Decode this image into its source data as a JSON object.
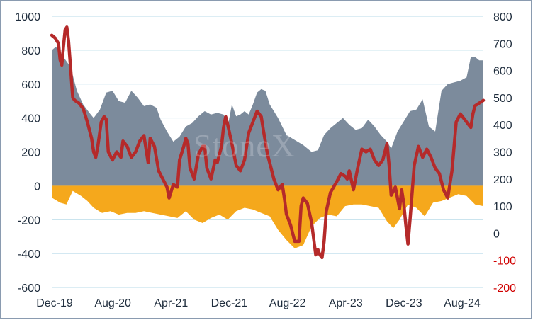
{
  "watermark": "StoneX",
  "colors": {
    "long": "#7c8b9c",
    "short": "#f5a81c",
    "net": "#b52a2a",
    "grid": "#b9dbe9",
    "neg_axis": "#d00000"
  },
  "chart_data": {
    "type": "area",
    "title": "",
    "grid": "horizontal",
    "x_ticks": [
      "Dec-19",
      "Aug-20",
      "Apr-21",
      "Dec-21",
      "Aug-22",
      "Apr-23",
      "Dec-23",
      "Aug-24"
    ],
    "x_range": [
      0,
      10.3
    ],
    "y_left": {
      "ticks": [
        "1000",
        "800",
        "600",
        "400",
        "200",
        "0",
        "-200",
        "-400",
        "-600"
      ],
      "range": [
        -600,
        1000
      ]
    },
    "y_right": {
      "ticks": [
        "800",
        "700",
        "600",
        "500",
        "400",
        "300",
        "200",
        "100",
        "0",
        "-100",
        "-200"
      ],
      "range": [
        -200,
        800
      ],
      "negative_color": "red"
    },
    "series": [
      {
        "kind": "area",
        "axis": "left",
        "color": "#7c8b9c",
        "points": [
          [
            0,
            800
          ],
          [
            0.1,
            820
          ],
          [
            0.25,
            770
          ],
          [
            0.45,
            700
          ],
          [
            0.6,
            560
          ],
          [
            0.75,
            480
          ],
          [
            0.9,
            430
          ],
          [
            1,
            400
          ],
          [
            1.15,
            450
          ],
          [
            1.3,
            550
          ],
          [
            1.45,
            560
          ],
          [
            1.6,
            500
          ],
          [
            1.75,
            490
          ],
          [
            1.9,
            560
          ],
          [
            2.05,
            520
          ],
          [
            2.2,
            470
          ],
          [
            2.35,
            480
          ],
          [
            2.5,
            460
          ],
          [
            2.6,
            390
          ],
          [
            2.75,
            320
          ],
          [
            2.9,
            260
          ],
          [
            3.05,
            290
          ],
          [
            3.2,
            350
          ],
          [
            3.35,
            370
          ],
          [
            3.5,
            410
          ],
          [
            3.65,
            440
          ],
          [
            3.8,
            420
          ],
          [
            3.95,
            430
          ],
          [
            4.1,
            420
          ],
          [
            4.2,
            350
          ],
          [
            4.3,
            480
          ],
          [
            4.4,
            410
          ],
          [
            4.5,
            420
          ],
          [
            4.6,
            440
          ],
          [
            4.7,
            420
          ],
          [
            4.8,
            480
          ],
          [
            4.9,
            550
          ],
          [
            5.0,
            570
          ],
          [
            5.1,
            560
          ],
          [
            5.2,
            480
          ],
          [
            5.4,
            400
          ],
          [
            5.6,
            300
          ],
          [
            5.8,
            270
          ],
          [
            6.0,
            240
          ],
          [
            6.2,
            200
          ],
          [
            6.35,
            210
          ],
          [
            6.5,
            300
          ],
          [
            6.65,
            340
          ],
          [
            6.8,
            370
          ],
          [
            6.95,
            400
          ],
          [
            7.1,
            360
          ],
          [
            7.25,
            330
          ],
          [
            7.4,
            340
          ],
          [
            7.55,
            390
          ],
          [
            7.7,
            350
          ],
          [
            7.85,
            300
          ],
          [
            8.0,
            260
          ],
          [
            8.1,
            220
          ],
          [
            8.25,
            320
          ],
          [
            8.4,
            380
          ],
          [
            8.55,
            440
          ],
          [
            8.7,
            450
          ],
          [
            8.85,
            510
          ],
          [
            9.0,
            350
          ],
          [
            9.15,
            320
          ],
          [
            9.3,
            560
          ],
          [
            9.45,
            600
          ],
          [
            9.6,
            610
          ],
          [
            9.75,
            620
          ],
          [
            9.9,
            640
          ],
          [
            10.0,
            760
          ],
          [
            10.1,
            760
          ],
          [
            10.2,
            740
          ],
          [
            10.3,
            740
          ]
        ]
      },
      {
        "kind": "area",
        "axis": "left",
        "color": "#f5a81c",
        "points": [
          [
            0,
            -70
          ],
          [
            0.2,
            -100
          ],
          [
            0.35,
            -110
          ],
          [
            0.5,
            -30
          ],
          [
            0.7,
            -60
          ],
          [
            0.85,
            -90
          ],
          [
            1,
            -130
          ],
          [
            1.2,
            -160
          ],
          [
            1.4,
            -150
          ],
          [
            1.6,
            -170
          ],
          [
            1.8,
            -160
          ],
          [
            2.0,
            -160
          ],
          [
            2.2,
            -150
          ],
          [
            2.4,
            -160
          ],
          [
            2.6,
            -170
          ],
          [
            2.8,
            -180
          ],
          [
            3.0,
            -190
          ],
          [
            3.2,
            -150
          ],
          [
            3.4,
            -200
          ],
          [
            3.6,
            -220
          ],
          [
            3.8,
            -190
          ],
          [
            4.0,
            -170
          ],
          [
            4.2,
            -200
          ],
          [
            4.4,
            -150
          ],
          [
            4.6,
            -130
          ],
          [
            4.8,
            -140
          ],
          [
            5.0,
            -160
          ],
          [
            5.2,
            -180
          ],
          [
            5.4,
            -260
          ],
          [
            5.6,
            -320
          ],
          [
            5.8,
            -370
          ],
          [
            6.0,
            -350
          ],
          [
            6.2,
            -240
          ],
          [
            6.4,
            -190
          ],
          [
            6.6,
            -170
          ],
          [
            6.8,
            -180
          ],
          [
            7.0,
            -120
          ],
          [
            7.2,
            -110
          ],
          [
            7.4,
            -110
          ],
          [
            7.6,
            -120
          ],
          [
            7.8,
            -130
          ],
          [
            8.0,
            -210
          ],
          [
            8.15,
            -250
          ],
          [
            8.3,
            -200
          ],
          [
            8.5,
            -110
          ],
          [
            8.7,
            -130
          ],
          [
            8.9,
            -180
          ],
          [
            9.1,
            -100
          ],
          [
            9.3,
            -90
          ],
          [
            9.5,
            -70
          ],
          [
            9.7,
            -50
          ],
          [
            9.9,
            -60
          ],
          [
            10.1,
            -110
          ],
          [
            10.3,
            -120
          ]
        ]
      },
      {
        "kind": "line",
        "axis": "right",
        "color": "#b52a2a",
        "points": [
          [
            0,
            730
          ],
          [
            0.08,
            720
          ],
          [
            0.16,
            700
          ],
          [
            0.2,
            640
          ],
          [
            0.24,
            620
          ],
          [
            0.28,
            690
          ],
          [
            0.32,
            750
          ],
          [
            0.36,
            760
          ],
          [
            0.4,
            710
          ],
          [
            0.45,
            610
          ],
          [
            0.5,
            500
          ],
          [
            0.55,
            490
          ],
          [
            0.65,
            480
          ],
          [
            0.75,
            460
          ],
          [
            0.85,
            410
          ],
          [
            0.95,
            350
          ],
          [
            1.0,
            300
          ],
          [
            1.05,
            280
          ],
          [
            1.1,
            320
          ],
          [
            1.18,
            410
          ],
          [
            1.25,
            430
          ],
          [
            1.3,
            420
          ],
          [
            1.35,
            300
          ],
          [
            1.45,
            270
          ],
          [
            1.55,
            300
          ],
          [
            1.65,
            280
          ],
          [
            1.7,
            340
          ],
          [
            1.8,
            320
          ],
          [
            1.9,
            280
          ],
          [
            2.0,
            300
          ],
          [
            2.1,
            340
          ],
          [
            2.2,
            360
          ],
          [
            2.3,
            260
          ],
          [
            2.35,
            350
          ],
          [
            2.45,
            320
          ],
          [
            2.55,
            230
          ],
          [
            2.65,
            200
          ],
          [
            2.75,
            170
          ],
          [
            2.8,
            130
          ],
          [
            2.9,
            180
          ],
          [
            3.0,
            170
          ],
          [
            3.05,
            270
          ],
          [
            3.15,
            320
          ],
          [
            3.2,
            350
          ],
          [
            3.25,
            330
          ],
          [
            3.3,
            240
          ],
          [
            3.4,
            200
          ],
          [
            3.5,
            290
          ],
          [
            3.6,
            320
          ],
          [
            3.65,
            320
          ],
          [
            3.7,
            240
          ],
          [
            3.8,
            200
          ],
          [
            3.9,
            270
          ],
          [
            3.95,
            260
          ],
          [
            4.0,
            290
          ],
          [
            4.05,
            320
          ],
          [
            4.1,
            390
          ],
          [
            4.15,
            430
          ],
          [
            4.2,
            400
          ],
          [
            4.3,
            330
          ],
          [
            4.4,
            250
          ],
          [
            4.5,
            230
          ],
          [
            4.6,
            270
          ],
          [
            4.7,
            370
          ],
          [
            4.8,
            410
          ],
          [
            4.9,
            450
          ],
          [
            5.0,
            430
          ],
          [
            5.05,
            380
          ],
          [
            5.15,
            290
          ],
          [
            5.3,
            200
          ],
          [
            5.4,
            160
          ],
          [
            5.5,
            180
          ],
          [
            5.55,
            130
          ],
          [
            5.6,
            70
          ],
          [
            5.7,
            30
          ],
          [
            5.8,
            -30
          ],
          [
            5.9,
            -30
          ],
          [
            5.95,
            100
          ],
          [
            6.0,
            130
          ],
          [
            6.1,
            110
          ],
          [
            6.2,
            40
          ],
          [
            6.3,
            -80
          ],
          [
            6.35,
            -60
          ],
          [
            6.4,
            -80
          ],
          [
            6.45,
            -90
          ],
          [
            6.5,
            -30
          ],
          [
            6.55,
            80
          ],
          [
            6.65,
            150
          ],
          [
            6.8,
            190
          ],
          [
            6.9,
            220
          ],
          [
            7.0,
            210
          ],
          [
            7.05,
            200
          ],
          [
            7.1,
            230
          ],
          [
            7.2,
            160
          ],
          [
            7.3,
            240
          ],
          [
            7.4,
            310
          ],
          [
            7.5,
            300
          ],
          [
            7.6,
            310
          ],
          [
            7.7,
            270
          ],
          [
            7.8,
            250
          ],
          [
            7.9,
            270
          ],
          [
            8.0,
            330
          ],
          [
            8.05,
            250
          ],
          [
            8.1,
            140
          ],
          [
            8.2,
            170
          ],
          [
            8.3,
            90
          ],
          [
            8.35,
            160
          ],
          [
            8.4,
            110
          ],
          [
            8.45,
            30
          ],
          [
            8.5,
            -40
          ],
          [
            8.55,
            50
          ],
          [
            8.65,
            250
          ],
          [
            8.75,
            320
          ],
          [
            8.85,
            280
          ],
          [
            8.95,
            310
          ],
          [
            9.05,
            280
          ],
          [
            9.15,
            240
          ],
          [
            9.25,
            220
          ],
          [
            9.35,
            160
          ],
          [
            9.45,
            130
          ],
          [
            9.55,
            230
          ],
          [
            9.65,
            410
          ],
          [
            9.75,
            440
          ],
          [
            9.85,
            420
          ],
          [
            9.95,
            400
          ],
          [
            10.0,
            390
          ],
          [
            10.05,
            440
          ],
          [
            10.1,
            470
          ],
          [
            10.2,
            480
          ],
          [
            10.3,
            490
          ]
        ]
      }
    ]
  }
}
